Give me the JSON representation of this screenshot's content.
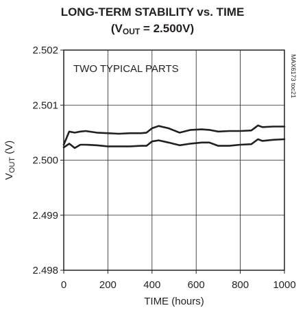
{
  "chart_data": {
    "type": "line",
    "title_line1": "LONG-TERM STABILITY vs. TIME",
    "title_line2": {
      "prefix": "(V",
      "sub": "OUT",
      "suffix": " = 2.500V)"
    },
    "xlabel": "TIME (hours)",
    "ylabel": {
      "main": "V",
      "sub": "OUT",
      "unit": " (V)"
    },
    "annotation": "TWO TYPICAL PARTS",
    "side_label": "MAX6173 toc21",
    "xlim": [
      0,
      1000
    ],
    "ylim": [
      2.498,
      2.502
    ],
    "xticks": [
      "0",
      "200",
      "400",
      "600",
      "800",
      "1000"
    ],
    "yticks": [
      "2.498",
      "2.499",
      "2.500",
      "2.501",
      "2.502"
    ],
    "grid": true,
    "series": [
      {
        "x": [
          0,
          25,
          50,
          75,
          100,
          150,
          200,
          250,
          300,
          350,
          375,
          400,
          430,
          475,
          525,
          575,
          625,
          660,
          700,
          750,
          800,
          850,
          880,
          900,
          950,
          1000
        ],
        "y": [
          2.50028,
          2.50052,
          2.5005,
          2.50052,
          2.50053,
          2.5005,
          2.50049,
          2.50048,
          2.50049,
          2.50049,
          2.5005,
          2.50058,
          2.50062,
          2.50058,
          2.5005,
          2.50055,
          2.50056,
          2.50055,
          2.50052,
          2.50053,
          2.50053,
          2.50054,
          2.50063,
          2.5006,
          2.50061,
          2.50061
        ]
      },
      {
        "x": [
          0,
          25,
          50,
          75,
          100,
          150,
          200,
          250,
          300,
          350,
          375,
          400,
          430,
          475,
          525,
          575,
          625,
          660,
          700,
          750,
          800,
          850,
          880,
          900,
          950,
          1000
        ],
        "y": [
          2.50023,
          2.5003,
          2.50022,
          2.50028,
          2.50028,
          2.50027,
          2.50025,
          2.50025,
          2.50025,
          2.50026,
          2.50026,
          2.50034,
          2.50036,
          2.50032,
          2.50027,
          2.5003,
          2.50032,
          2.50032,
          2.50026,
          2.50026,
          2.50028,
          2.50029,
          2.50038,
          2.50035,
          2.50037,
          2.50038
        ]
      }
    ],
    "colors": {
      "line": "#231f20",
      "grid": "#231f20"
    }
  }
}
